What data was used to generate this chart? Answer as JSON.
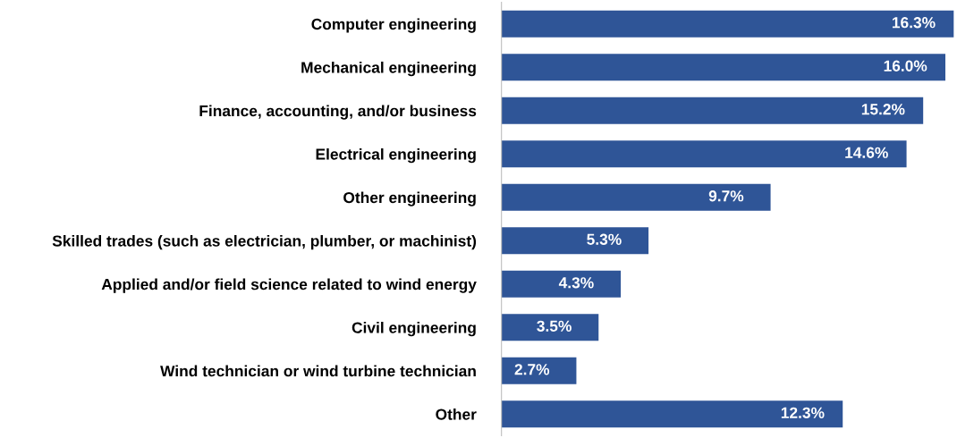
{
  "chart_data": {
    "type": "bar",
    "orientation": "horizontal",
    "categories": [
      "Computer engineering",
      "Mechanical engineering",
      "Finance, accounting, and/or business",
      "Electrical engineering",
      "Other engineering",
      "Skilled trades (such as electrician, plumber, or machinist)",
      "Applied and/or field science related to wind energy",
      "Civil engineering",
      "Wind technician or wind turbine technician",
      "Other"
    ],
    "values": [
      16.3,
      16.0,
      15.2,
      14.6,
      9.7,
      5.3,
      4.3,
      3.5,
      2.7,
      12.3
    ],
    "value_labels": [
      "16.3%",
      "16.0%",
      "15.2%",
      "14.6%",
      "9.7%",
      "5.3%",
      "4.3%",
      "3.5%",
      "2.7%",
      "12.3%"
    ],
    "color": "#2f5597",
    "xlim": [
      0,
      16.35
    ],
    "tick_labels": "y",
    "grid": false,
    "legend": false
  }
}
